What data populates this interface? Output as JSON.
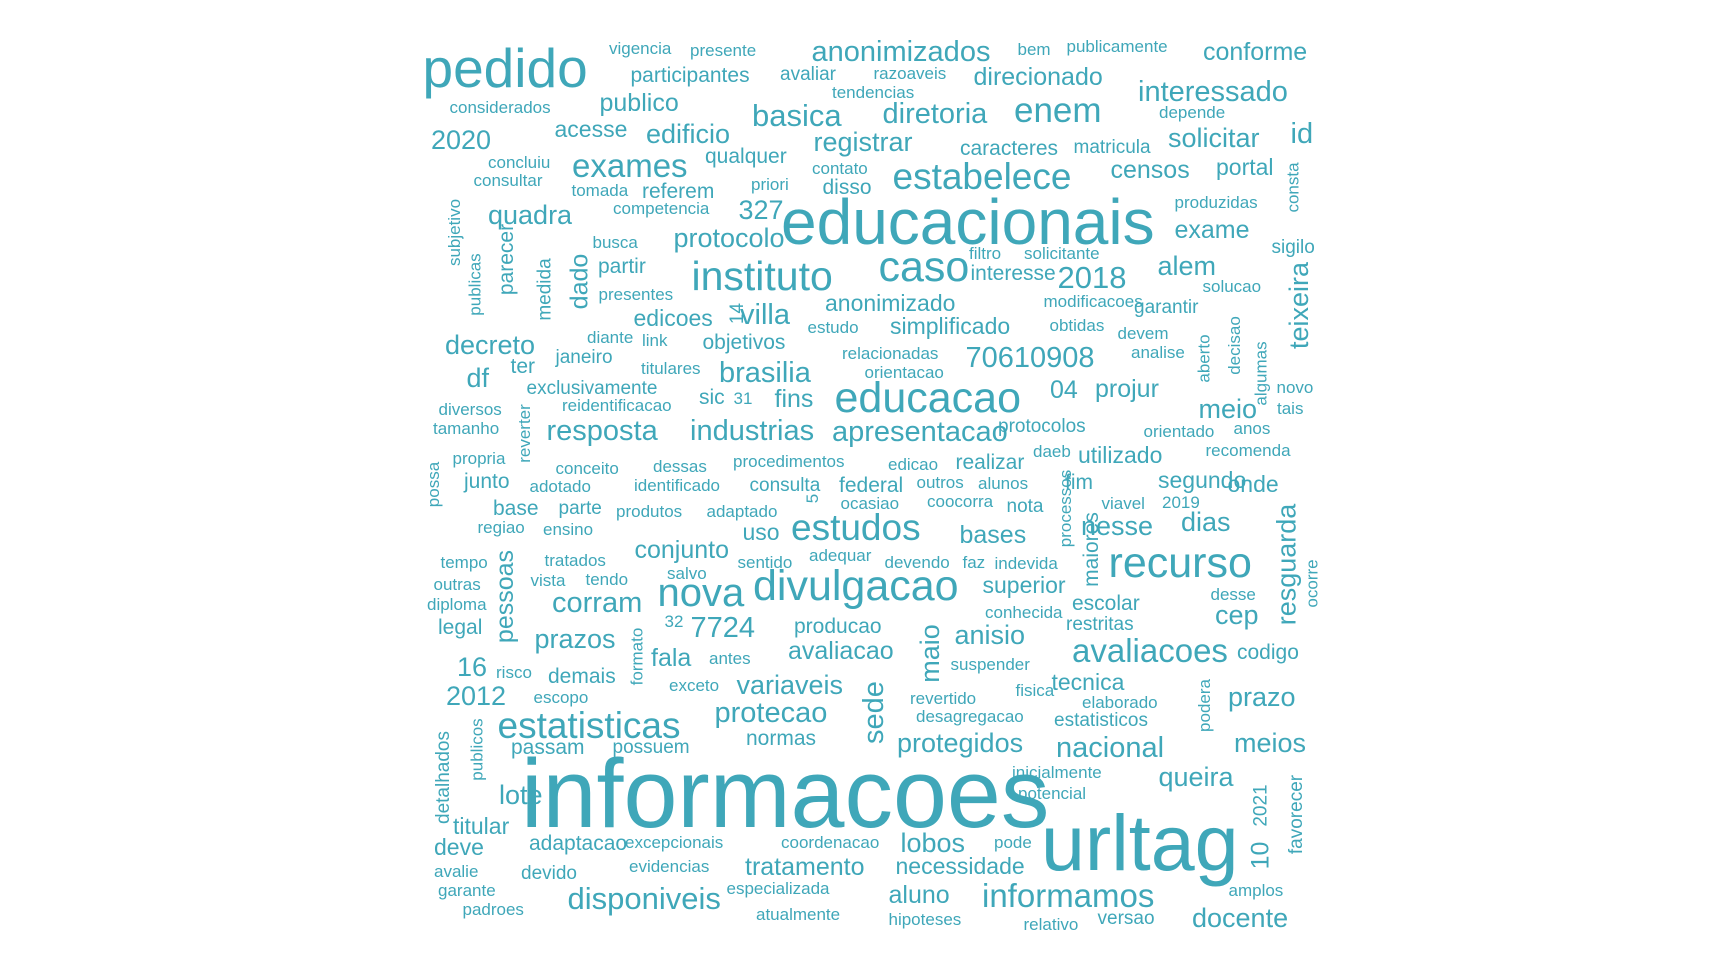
{
  "color": "#3fa7b9",
  "words": [
    {
      "text": "informacoes"
    },
    {
      "text": "urltag"
    },
    {
      "text": "educacionais"
    },
    {
      "text": "pedido"
    },
    {
      "text": "educacao"
    },
    {
      "text": "divulgacao"
    },
    {
      "text": "recurso"
    },
    {
      "text": "caso"
    },
    {
      "text": "instituto"
    },
    {
      "text": "estabelece"
    },
    {
      "text": "estudos"
    },
    {
      "text": "nova"
    },
    {
      "text": "estatisticas"
    },
    {
      "text": "avaliacoes"
    },
    {
      "text": "anonimizados"
    },
    {
      "text": "informamos"
    },
    {
      "text": "enem"
    },
    {
      "text": "disponiveis"
    },
    {
      "text": "exames"
    },
    {
      "text": "basica"
    },
    {
      "text": "diretoria"
    },
    {
      "text": "interessado"
    },
    {
      "text": "resposta"
    },
    {
      "text": "industrias"
    },
    {
      "text": "apresentacao"
    },
    {
      "text": "brasilia"
    },
    {
      "text": "conforme"
    },
    {
      "text": "edificio"
    },
    {
      "text": "publico"
    },
    {
      "text": "registrar"
    },
    {
      "text": "solicitar"
    },
    {
      "text": "id"
    },
    {
      "text": "2020"
    },
    {
      "text": "censos"
    },
    {
      "text": "quadra"
    },
    {
      "text": "327"
    },
    {
      "text": "protocolo"
    },
    {
      "text": "exame"
    },
    {
      "text": "2018"
    },
    {
      "text": "alem"
    },
    {
      "text": "villa"
    },
    {
      "text": "decreto"
    },
    {
      "text": "70610908"
    },
    {
      "text": "04"
    },
    {
      "text": "projur"
    },
    {
      "text": "df"
    },
    {
      "text": "meio"
    },
    {
      "text": "fins"
    },
    {
      "text": "corram"
    },
    {
      "text": "prazos"
    },
    {
      "text": "7724"
    },
    {
      "text": "anisio"
    },
    {
      "text": "avaliacao"
    },
    {
      "text": "fala"
    },
    {
      "text": "variaveis"
    },
    {
      "text": "protecao"
    },
    {
      "text": "protegidos"
    },
    {
      "text": "nacional"
    },
    {
      "text": "queira"
    },
    {
      "text": "lote"
    },
    {
      "text": "meios"
    },
    {
      "text": "prazo"
    },
    {
      "text": "2012"
    },
    {
      "text": "16"
    },
    {
      "text": "tratamento"
    },
    {
      "text": "aluno"
    },
    {
      "text": "docente"
    },
    {
      "text": "lobos"
    },
    {
      "text": "necessidade"
    },
    {
      "text": "dias"
    },
    {
      "text": "nesse"
    },
    {
      "text": "bases"
    },
    {
      "text": "cep"
    },
    {
      "text": "conjunto"
    },
    {
      "text": "superior"
    },
    {
      "text": "utilizado"
    },
    {
      "text": "segundo"
    },
    {
      "text": "direcionado"
    },
    {
      "text": "acesse"
    },
    {
      "text": "participantes"
    },
    {
      "text": "simplificado"
    },
    {
      "text": "anonimizado"
    },
    {
      "text": "edicoes"
    },
    {
      "text": "objetivos"
    },
    {
      "text": "partir"
    },
    {
      "text": "interesse"
    },
    {
      "text": "portal"
    },
    {
      "text": "caracteres"
    },
    {
      "text": "matricula"
    },
    {
      "text": "qualquer"
    },
    {
      "text": "disso"
    },
    {
      "text": "referem"
    },
    {
      "text": "escolar"
    },
    {
      "text": "tecnica"
    },
    {
      "text": "onde"
    },
    {
      "text": "realizar"
    },
    {
      "text": "uso"
    },
    {
      "text": "fim"
    },
    {
      "text": "consulta"
    },
    {
      "text": "federal"
    },
    {
      "text": "producao"
    },
    {
      "text": "normas"
    },
    {
      "text": "estatisticos"
    },
    {
      "text": "adaptacao"
    },
    {
      "text": "codigo"
    },
    {
      "text": "titular"
    },
    {
      "text": "deve"
    },
    {
      "text": "passam"
    },
    {
      "text": "legal"
    },
    {
      "text": "demais"
    },
    {
      "text": "junto"
    },
    {
      "text": "base"
    },
    {
      "text": "parte"
    },
    {
      "text": "exclusivamente"
    },
    {
      "text": "janeiro"
    },
    {
      "text": "ter"
    },
    {
      "text": "possuem"
    },
    {
      "text": "protocolos"
    },
    {
      "text": "nota"
    },
    {
      "text": "restritas"
    },
    {
      "text": "garantir"
    },
    {
      "text": "analise"
    },
    {
      "text": "devem"
    },
    {
      "text": "recomenda"
    },
    {
      "text": "orientado"
    },
    {
      "text": "anos"
    },
    {
      "text": "novo"
    },
    {
      "text": "tais"
    },
    {
      "text": "vigencia"
    },
    {
      "text": "presente"
    },
    {
      "text": "bem"
    },
    {
      "text": "publicamente"
    },
    {
      "text": "avaliar"
    },
    {
      "text": "razoaveis"
    },
    {
      "text": "tendencias"
    },
    {
      "text": "considerados"
    },
    {
      "text": "depende"
    },
    {
      "text": "concluiu"
    },
    {
      "text": "consultar"
    },
    {
      "text": "priori"
    },
    {
      "text": "contato"
    },
    {
      "text": "tomada"
    },
    {
      "text": "competencia"
    },
    {
      "text": "produzidas"
    },
    {
      "text": "busca"
    },
    {
      "text": "filtro"
    },
    {
      "text": "solicitante"
    },
    {
      "text": "presentes"
    },
    {
      "text": "modificacoes"
    },
    {
      "text": "solucao"
    },
    {
      "text": "diante"
    },
    {
      "text": "link"
    },
    {
      "text": "estudo"
    },
    {
      "text": "obtidas"
    },
    {
      "text": "titulares"
    },
    {
      "text": "relacionadas"
    },
    {
      "text": "orientacao"
    },
    {
      "text": "reidentificacao"
    },
    {
      "text": "sic"
    },
    {
      "text": "31"
    },
    {
      "text": "diversos"
    },
    {
      "text": "tamanho"
    },
    {
      "text": "propria"
    },
    {
      "text": "conceito"
    },
    {
      "text": "dessas"
    },
    {
      "text": "procedimentos"
    },
    {
      "text": "edicao"
    },
    {
      "text": "daeb"
    },
    {
      "text": "adotado"
    },
    {
      "text": "identificado"
    },
    {
      "text": "outros"
    },
    {
      "text": "alunos"
    },
    {
      "text": "coocorra"
    },
    {
      "text": "viavel"
    },
    {
      "text": "2019"
    },
    {
      "text": "regiao"
    },
    {
      "text": "ensino"
    },
    {
      "text": "produtos"
    },
    {
      "text": "adaptado"
    },
    {
      "text": "ocasiao"
    },
    {
      "text": "tempo"
    },
    {
      "text": "tratados"
    },
    {
      "text": "sentido"
    },
    {
      "text": "adequar"
    },
    {
      "text": "devendo"
    },
    {
      "text": "faz"
    },
    {
      "text": "indevida"
    },
    {
      "text": "outras"
    },
    {
      "text": "vista"
    },
    {
      "text": "tendo"
    },
    {
      "text": "salvo"
    },
    {
      "text": "desse"
    },
    {
      "text": "diploma"
    },
    {
      "text": "conhecida"
    },
    {
      "text": "32"
    },
    {
      "text": "risco"
    },
    {
      "text": "antes"
    },
    {
      "text": "suspender"
    },
    {
      "text": "escopo"
    },
    {
      "text": "exceto"
    },
    {
      "text": "fisica"
    },
    {
      "text": "revertido"
    },
    {
      "text": "elaborado"
    },
    {
      "text": "desagregacao"
    },
    {
      "text": "inicialmente"
    },
    {
      "text": "potencial"
    },
    {
      "text": "excepcionais"
    },
    {
      "text": "coordenacao"
    },
    {
      "text": "pode"
    },
    {
      "text": "evidencias"
    },
    {
      "text": "avalie"
    },
    {
      "text": "devido"
    },
    {
      "text": "garante"
    },
    {
      "text": "especializada"
    },
    {
      "text": "amplos"
    },
    {
      "text": "padroes"
    },
    {
      "text": "atualmente"
    },
    {
      "text": "hipoteses"
    },
    {
      "text": "relativo"
    },
    {
      "text": "versao"
    },
    {
      "text": "sigilo"
    },
    {
      "text": "subjetivo"
    },
    {
      "text": "publicas"
    },
    {
      "text": "parecer"
    },
    {
      "text": "medida"
    },
    {
      "text": "dado"
    },
    {
      "text": "14"
    },
    {
      "text": "teixeira"
    },
    {
      "text": "consta"
    },
    {
      "text": "aberto"
    },
    {
      "text": "decisao"
    },
    {
      "text": "algumas"
    },
    {
      "text": "reverter"
    },
    {
      "text": "possa"
    },
    {
      "text": "processos"
    },
    {
      "text": "maiores"
    },
    {
      "text": "5"
    },
    {
      "text": "resguarda"
    },
    {
      "text": "ocorre"
    },
    {
      "text": "pessoas"
    },
    {
      "text": "maio"
    },
    {
      "text": "formato"
    },
    {
      "text": "sede"
    },
    {
      "text": "podera"
    },
    {
      "text": "publicos"
    },
    {
      "text": "detalhados"
    },
    {
      "text": "10"
    },
    {
      "text": "2021"
    },
    {
      "text": "favorecer"
    }
  ]
}
